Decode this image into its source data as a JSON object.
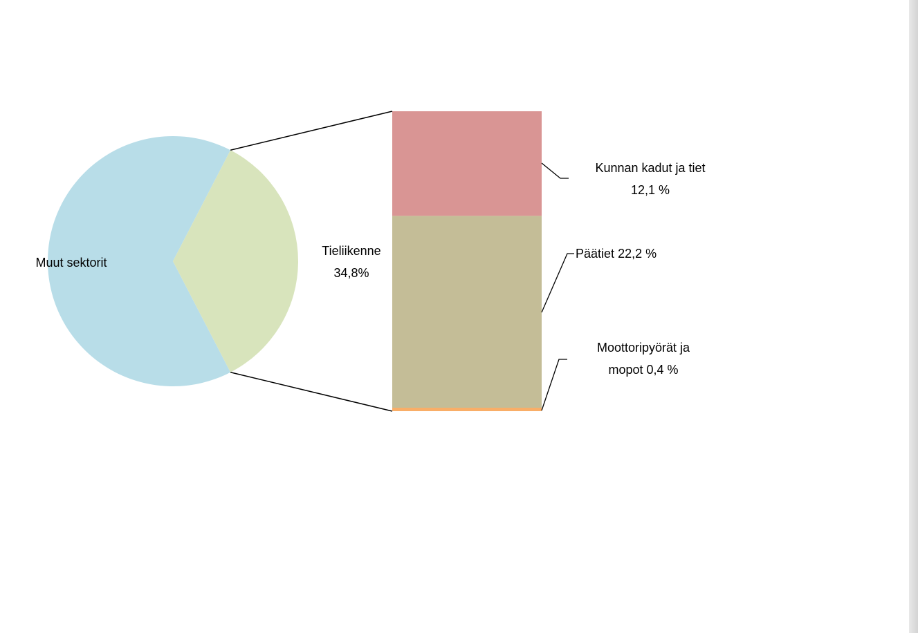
{
  "chart_data": {
    "type": "bar-of-pie",
    "pie": {
      "categories": [
        "Muut sektorit",
        "Tieliikenne"
      ],
      "values": [
        65.2,
        34.8
      ],
      "value_labels": [
        null,
        "34,8%"
      ],
      "colors": [
        "#b8dde8",
        "#d8e4bc"
      ]
    },
    "bar": {
      "categories": [
        "Moottoripyörät ja mopot",
        "Päätiet",
        "Kunnan kadut ja tiet"
      ],
      "values": [
        0.4,
        22.2,
        12.1
      ],
      "value_labels": [
        "0,4 %",
        "22,2 %",
        "12,1 %"
      ],
      "colors": [
        "#f9ae68",
        "#c4bd97",
        "#d99594"
      ]
    }
  }
}
